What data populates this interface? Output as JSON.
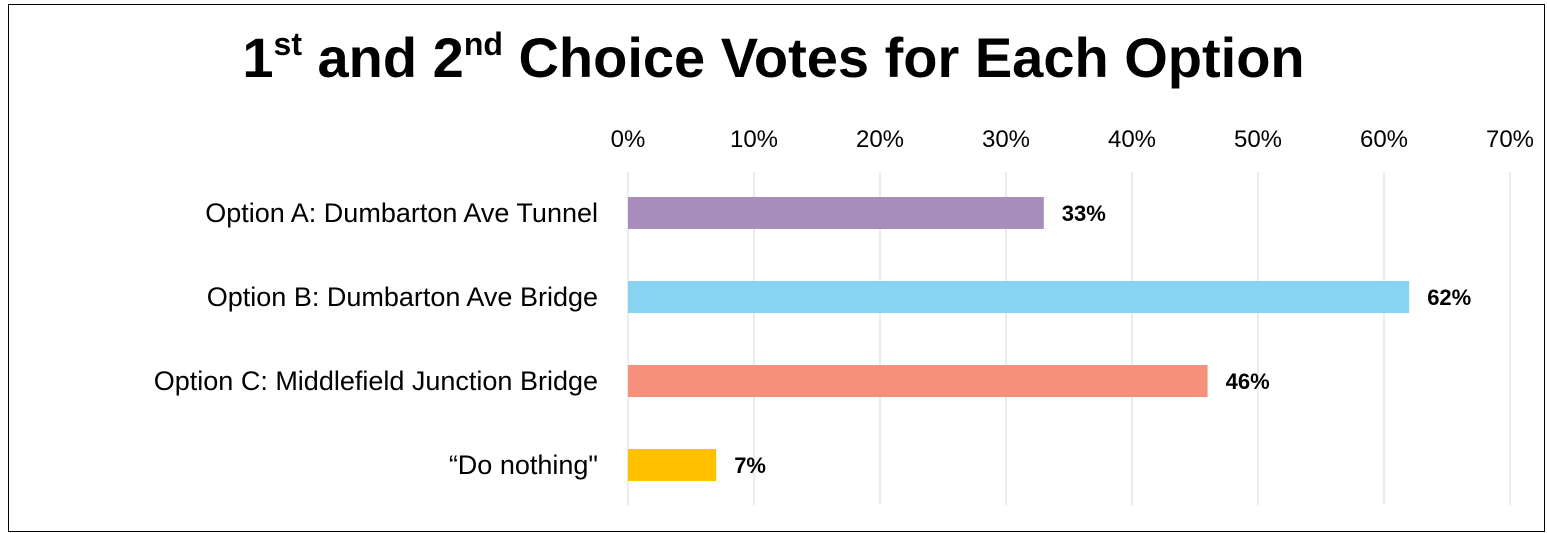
{
  "chart_data": {
    "type": "bar",
    "orientation": "horizontal",
    "title": {
      "part1_num": "1",
      "part1_sup": "st",
      "mid": " and ",
      "part2_num": "2",
      "part2_sup": "nd",
      "rest": " Choice Votes for Each Option"
    },
    "categories": [
      "Option A: Dumbarton Ave Tunnel",
      "Option B: Dumbarton Ave Bridge",
      "Option C: Middlefield Junction Bridge",
      "“Do nothing\""
    ],
    "values": [
      33,
      62,
      46,
      7
    ],
    "data_labels": [
      "33%",
      "62%",
      "46%",
      "7%"
    ],
    "colors": [
      "#A68DBB",
      "#87D3F2",
      "#F5907A",
      "#FFC000"
    ],
    "xlim": [
      0,
      70
    ],
    "x_ticks": [
      0,
      10,
      20,
      30,
      40,
      50,
      60,
      70
    ],
    "x_tick_labels": [
      "0%",
      "10%",
      "20%",
      "30%",
      "40%",
      "50%",
      "60%",
      "70%"
    ],
    "x_axis_position": "top",
    "grid": true,
    "gridline_color": "#D9D9D9",
    "legend": "none"
  }
}
